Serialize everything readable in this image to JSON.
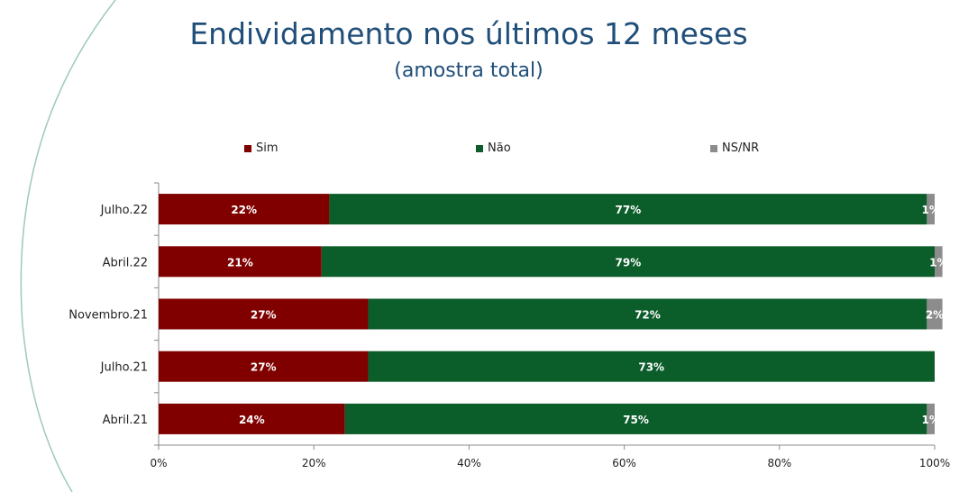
{
  "title": "Endividamento nos últimos 12 meses",
  "subtitle": "(amostra total)",
  "colors": {
    "title": "#1f4e79",
    "sim": "#800000",
    "nao": "#0b5d2a",
    "nsnr": "#8c8c8c",
    "decor_arc": "#9fc8bd"
  },
  "chart_data": {
    "type": "bar",
    "orientation": "horizontal",
    "stacked": true,
    "categories": [
      "Julho.22",
      "Abril.22",
      "Novembro.21",
      "Julho.21",
      "Abril.21"
    ],
    "series": [
      {
        "name": "Sim",
        "values": [
          22,
          21,
          27,
          27,
          24
        ],
        "labels": [
          "22%",
          "21%",
          "27%",
          "27%",
          "24%"
        ]
      },
      {
        "name": "Não",
        "values": [
          77,
          79,
          72,
          73,
          75
        ],
        "labels": [
          "77%",
          "79%",
          "72%",
          "73%",
          "75%"
        ]
      },
      {
        "name": "NS/NR",
        "values": [
          1,
          1,
          2,
          0,
          1
        ],
        "labels": [
          "1%",
          "1%",
          "2%",
          "",
          "1%"
        ]
      }
    ],
    "xlim": [
      0,
      100
    ],
    "xticks": [
      "0%",
      "20%",
      "40%",
      "60%",
      "80%",
      "100%"
    ],
    "legend_position": "top",
    "grid": false
  }
}
